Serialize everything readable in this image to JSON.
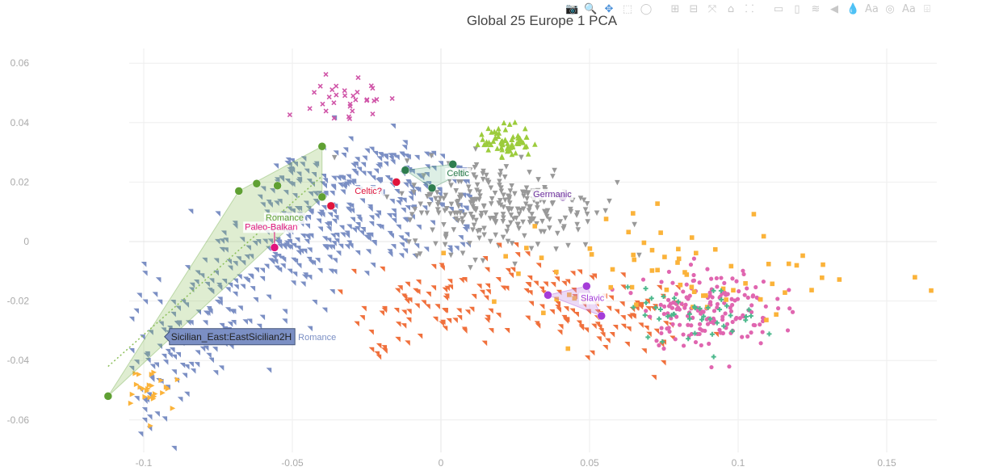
{
  "chart_data": {
    "type": "scatter",
    "title": "Global 25 Europe 1 PCA",
    "xlim": [
      -0.1,
      0.16
    ],
    "ylim": [
      -0.067,
      0.064
    ],
    "x_ticks": [
      "-0.1",
      "-0.05",
      "0",
      "0.05",
      "0.1",
      "0.15"
    ],
    "y_ticks": [
      "0.06",
      "0.04",
      "0.02",
      "0",
      "-0.02",
      "-0.04",
      "-0.06"
    ],
    "grid": true,
    "series": [
      {
        "name": "Romance",
        "color": "#7b8fc4",
        "marker": "triangle-ne",
        "center": [
          -0.05,
          0.0
        ],
        "spread": [
          0.04,
          0.022
        ],
        "count": 620
      },
      {
        "name": "Germanic",
        "color": "#999999",
        "marker": "triangle-down",
        "center": [
          0.02,
          0.012
        ],
        "spread": [
          0.03,
          0.014
        ],
        "count": 260
      },
      {
        "name": "Slavic",
        "color": "#f0703c",
        "marker": "triangle-ne",
        "center": [
          0.05,
          -0.024
        ],
        "spread": [
          0.035,
          0.01
        ],
        "count": 200
      },
      {
        "name": "Celtic",
        "color": "#9ccc3c",
        "marker": "triangle-up",
        "center": [
          0.022,
          0.034
        ],
        "spread": [
          0.008,
          0.005
        ],
        "count": 70
      },
      {
        "name": "",
        "color": "#e066b0",
        "marker": "circle",
        "center": [
          0.09,
          -0.022
        ],
        "spread": [
          0.02,
          0.012
        ],
        "count": 170
      },
      {
        "name": "",
        "color": "#fbb33a",
        "marker": "square",
        "center": [
          0.08,
          -0.01
        ],
        "spread": [
          0.06,
          0.02
        ],
        "count": 70
      },
      {
        "name": "",
        "color": "#4cb88c",
        "marker": "cross",
        "center": [
          0.085,
          -0.025
        ],
        "spread": [
          0.02,
          0.008
        ],
        "count": 45
      },
      {
        "name": "",
        "color": "#d055a8",
        "marker": "x",
        "center": [
          -0.032,
          0.047
        ],
        "spread": [
          0.012,
          0.009
        ],
        "count": 32
      },
      {
        "name": "",
        "color": "#fbb33a",
        "marker": "triangle-right",
        "center": [
          -0.1,
          -0.05
        ],
        "spread": [
          0.012,
          0.008
        ],
        "count": 40
      }
    ],
    "groups": [
      {
        "label": "Romance",
        "color": "#5fa033",
        "fill": "rgba(140,190,90,0.28)",
        "label_at": [
          -0.059,
          0.007
        ],
        "hull": [
          [
            -0.112,
            -0.052
          ],
          [
            -0.068,
            0.017
          ],
          [
            -0.04,
            0.032
          ],
          [
            -0.04,
            0.015
          ]
        ],
        "points": [
          [
            -0.112,
            -0.052
          ],
          [
            -0.068,
            0.017
          ],
          [
            -0.062,
            0.0195
          ],
          [
            -0.055,
            0.0188
          ],
          [
            -0.04,
            0.032
          ],
          [
            -0.04,
            0.015
          ]
        ]
      },
      {
        "label": "Paleo-Balkan",
        "color": "#e0147d",
        "fill": "none",
        "label_at": [
          -0.066,
          0.004
        ],
        "hull": [],
        "points": [
          [
            -0.056,
            -0.002
          ]
        ]
      },
      {
        "label": "Celtic?",
        "color": "#e0143c",
        "fill": "none",
        "label_at": [
          -0.029,
          0.016
        ],
        "hull": [],
        "points": [
          [
            -0.037,
            0.012
          ],
          [
            -0.015,
            0.02
          ]
        ]
      },
      {
        "label": "Celtic",
        "color": "#2e7d4f",
        "fill": "rgba(120,190,150,0.25)",
        "label_at": [
          0.002,
          0.022
        ],
        "hull": [
          [
            -0.012,
            0.024
          ],
          [
            0.004,
            0.026
          ],
          [
            0.007,
            0.023
          ],
          [
            -0.003,
            0.018
          ]
        ],
        "points": [
          [
            -0.012,
            0.024
          ],
          [
            0.004,
            0.026
          ],
          [
            0.007,
            0.023
          ],
          [
            -0.003,
            0.018
          ]
        ]
      },
      {
        "label": "Germanic",
        "color": "#6a2c9c",
        "fill": "none",
        "label_at": [
          0.031,
          0.015
        ],
        "hull": [],
        "points": [
          [
            0.041,
            0.015
          ]
        ]
      },
      {
        "label": "Slavic",
        "color": "#a43cd8",
        "fill": "rgba(200,150,230,0.35)",
        "label_at": [
          0.047,
          -0.02
        ],
        "hull": [
          [
            0.036,
            -0.018
          ],
          [
            0.049,
            -0.015
          ],
          [
            0.054,
            -0.025
          ]
        ],
        "points": [
          [
            0.036,
            -0.018
          ],
          [
            0.049,
            -0.015
          ],
          [
            0.054,
            -0.025
          ]
        ]
      }
    ],
    "hover_label": {
      "text": "Sicilian_East:EastSicilian2H",
      "series": "Romance",
      "at": [
        -0.093,
        -0.032
      ]
    }
  },
  "modebar": {
    "icons": [
      "camera-icon",
      "zoom-icon",
      "pan-icon",
      "box-select-icon",
      "lasso-icon",
      "zoom-in-icon",
      "zoom-out-icon",
      "autoscale-icon",
      "home-icon",
      "spike-lines-icon",
      "hover-closest-icon",
      "hover-compare-icon",
      "layers-icon",
      "toggle-icon",
      "drop-icon",
      "font-icon",
      "plotly-logo-icon",
      "font-icon-2",
      "comment-icon"
    ],
    "glyphs": [
      "📷",
      "🔍",
      "✥",
      "⬚",
      "◯",
      "⊞",
      "⊟",
      "⤧",
      "⌂",
      "⸬",
      "▭",
      "▯",
      "≋",
      "◀",
      "💧",
      "Aa",
      "◎",
      "Aa",
      "⌹"
    ],
    "active": "pan-icon"
  }
}
